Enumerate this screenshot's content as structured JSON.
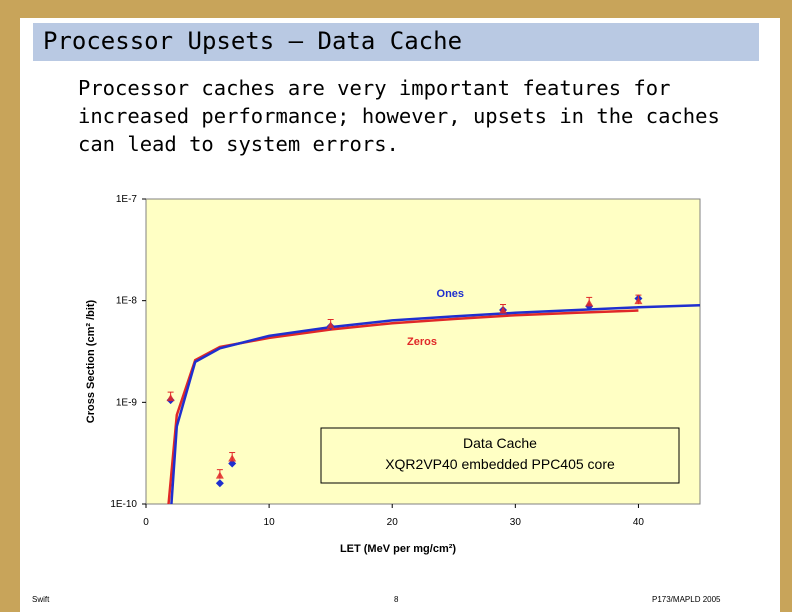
{
  "slide": {
    "title": "Processor Upsets – Data Cache",
    "body_lines": [
      "Processor caches are very important features for",
      "increased performance; however, upsets in the caches",
      "can lead to system errors."
    ],
    "footer_left": "Swift",
    "footer_center": "8",
    "footer_right": "P173/MAPLD 2005"
  },
  "colors": {
    "background": "#c8a45a",
    "title_bar": "#b9c9e3",
    "plot_bg": "#ffffc4",
    "ones": "#1f2fcf",
    "zeros": "#e02828"
  },
  "chart_data": {
    "type": "scatter",
    "xlabel": "LET (MeV per mg/cm²)",
    "ylabel": "Cross Section (cm² /bit)",
    "x_ticks": [
      "0",
      "10",
      "20",
      "30",
      "40"
    ],
    "y_ticks": [
      "1E-10",
      "1E-9",
      "1E-8",
      "1E-7"
    ],
    "xlim": [
      0,
      45
    ],
    "ylim": [
      1e-10,
      1e-07
    ],
    "yscale": "log",
    "grid": false,
    "series": [
      {
        "name": "Ones",
        "points": [
          [
            2,
            1.05e-09
          ],
          [
            6,
            1.6e-10
          ],
          [
            7,
            2.5e-10
          ],
          [
            15,
            5.6e-09
          ],
          [
            29,
            8.1e-09
          ],
          [
            36,
            8.8e-09
          ],
          [
            40,
            1.05e-08
          ]
        ],
        "fit": [
          [
            1.8,
            3.5e-11
          ],
          [
            2.5,
            5.8e-10
          ],
          [
            4,
            2.5e-09
          ],
          [
            6,
            3.4e-09
          ],
          [
            10,
            4.5e-09
          ],
          [
            15,
            5.5e-09
          ],
          [
            20,
            6.4e-09
          ],
          [
            25,
            7e-09
          ],
          [
            30,
            7.6e-09
          ],
          [
            35,
            8.1e-09
          ],
          [
            40,
            8.6e-09
          ],
          [
            45,
            9e-09
          ]
        ]
      },
      {
        "name": "Zeros",
        "points": [
          [
            2,
            1.1e-09
          ],
          [
            6,
            1.9e-10
          ],
          [
            7,
            2.8e-10
          ],
          [
            15,
            5.7e-09
          ],
          [
            29,
            8e-09
          ],
          [
            36,
            9.4e-09
          ],
          [
            40,
            9.9e-09
          ]
        ],
        "fit": [
          [
            1.6,
            5e-11
          ],
          [
            2.5,
            7.5e-10
          ],
          [
            4,
            2.6e-09
          ],
          [
            6,
            3.5e-09
          ],
          [
            10,
            4.3e-09
          ],
          [
            15,
            5.2e-09
          ],
          [
            20,
            6e-09
          ],
          [
            25,
            6.6e-09
          ],
          [
            30,
            7.2e-09
          ],
          [
            35,
            7.6e-09
          ],
          [
            40,
            8e-09
          ]
        ]
      }
    ],
    "annotations": [
      "Ones",
      "Zeros"
    ],
    "legend_box": {
      "line1": "Data Cache",
      "line2": "XQR2VP40 embedded PPC405 core"
    }
  }
}
